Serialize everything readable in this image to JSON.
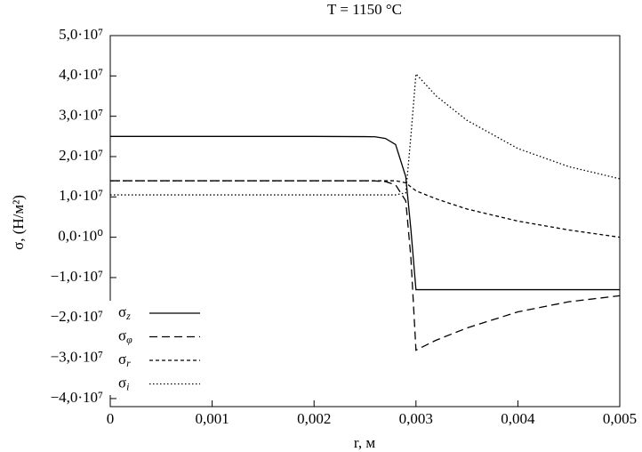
{
  "chart_data": {
    "type": "line",
    "title": "T = 1150 °C",
    "x_label": "r, м",
    "y_label": "σ, (Н/м²)",
    "x": [
      0,
      0.001,
      0.002,
      0.0025,
      0.0026,
      0.0027,
      0.0028,
      0.0029,
      0.00295,
      0.003,
      0.0032,
      0.0035,
      0.004,
      0.0045,
      0.005
    ],
    "series": [
      {
        "name": "σz",
        "color": "#000000",
        "linestyle": "solid",
        "values": [
          25000000,
          25000000,
          25000000,
          24950000,
          24900000,
          24500000,
          23000000,
          15000000,
          2000000,
          -13000000,
          -13000000,
          -13000000,
          -13000000,
          -13000000,
          -13000000
        ]
      },
      {
        "name": "σφ",
        "color": "#000000",
        "linestyle": "dashed",
        "values": [
          14000000,
          14000000,
          14000000,
          14000000,
          13950000,
          13800000,
          13000000,
          9000000,
          -5000000,
          -28000000,
          -25500000,
          -22500000,
          -18500000,
          -16000000,
          -14500000
        ]
      },
      {
        "name": "σr",
        "color": "#000000",
        "linestyle": "short-dashed",
        "values": [
          14000000,
          14000000,
          14000000,
          14000000,
          14000000,
          14000000,
          14000000,
          13500000,
          12500000,
          11500000,
          9500000,
          7000000,
          4000000,
          1800000,
          0
        ]
      },
      {
        "name": "σi",
        "color": "#000000",
        "linestyle": "dotted",
        "values": [
          10500000,
          10500000,
          10500000,
          10500000,
          10500000,
          10500000,
          10500000,
          11000000,
          25000000,
          40500000,
          35000000,
          29000000,
          22000000,
          17500000,
          14500000
        ]
      }
    ],
    "xlim": [
      0,
      0.005
    ],
    "xticks": [
      0,
      {
        "value": 0.001,
        "label": "0,001"
      },
      {
        "value": 0.002,
        "label": "0,002"
      },
      {
        "value": 0.003,
        "label": "0,003"
      },
      {
        "value": 0.004,
        "label": "0,004"
      },
      {
        "value": 0.005,
        "label": "0,005"
      }
    ],
    "ylim": [
      -42000000,
      50000000
    ],
    "yticks": [
      {
        "value": -40000000,
        "label": "−4,0·10⁷"
      },
      {
        "value": -30000000,
        "label": "−3,0·10⁷"
      },
      {
        "value": -20000000,
        "label": "−2,0·10⁷"
      },
      {
        "value": -10000000,
        "label": "−1,0·10⁷"
      },
      {
        "value": 0,
        "label": "0,0·10⁰"
      },
      {
        "value": 10000000,
        "label": "1,0·10⁷"
      },
      {
        "value": 20000000,
        "label": "2,0·10⁷"
      },
      {
        "value": 30000000,
        "label": "3,0·10⁷"
      },
      {
        "value": 40000000,
        "label": "4,0·10⁷"
      },
      {
        "value": 50000000,
        "label": "5,0·10⁷"
      }
    ],
    "grid": false,
    "legend": "lower left"
  }
}
